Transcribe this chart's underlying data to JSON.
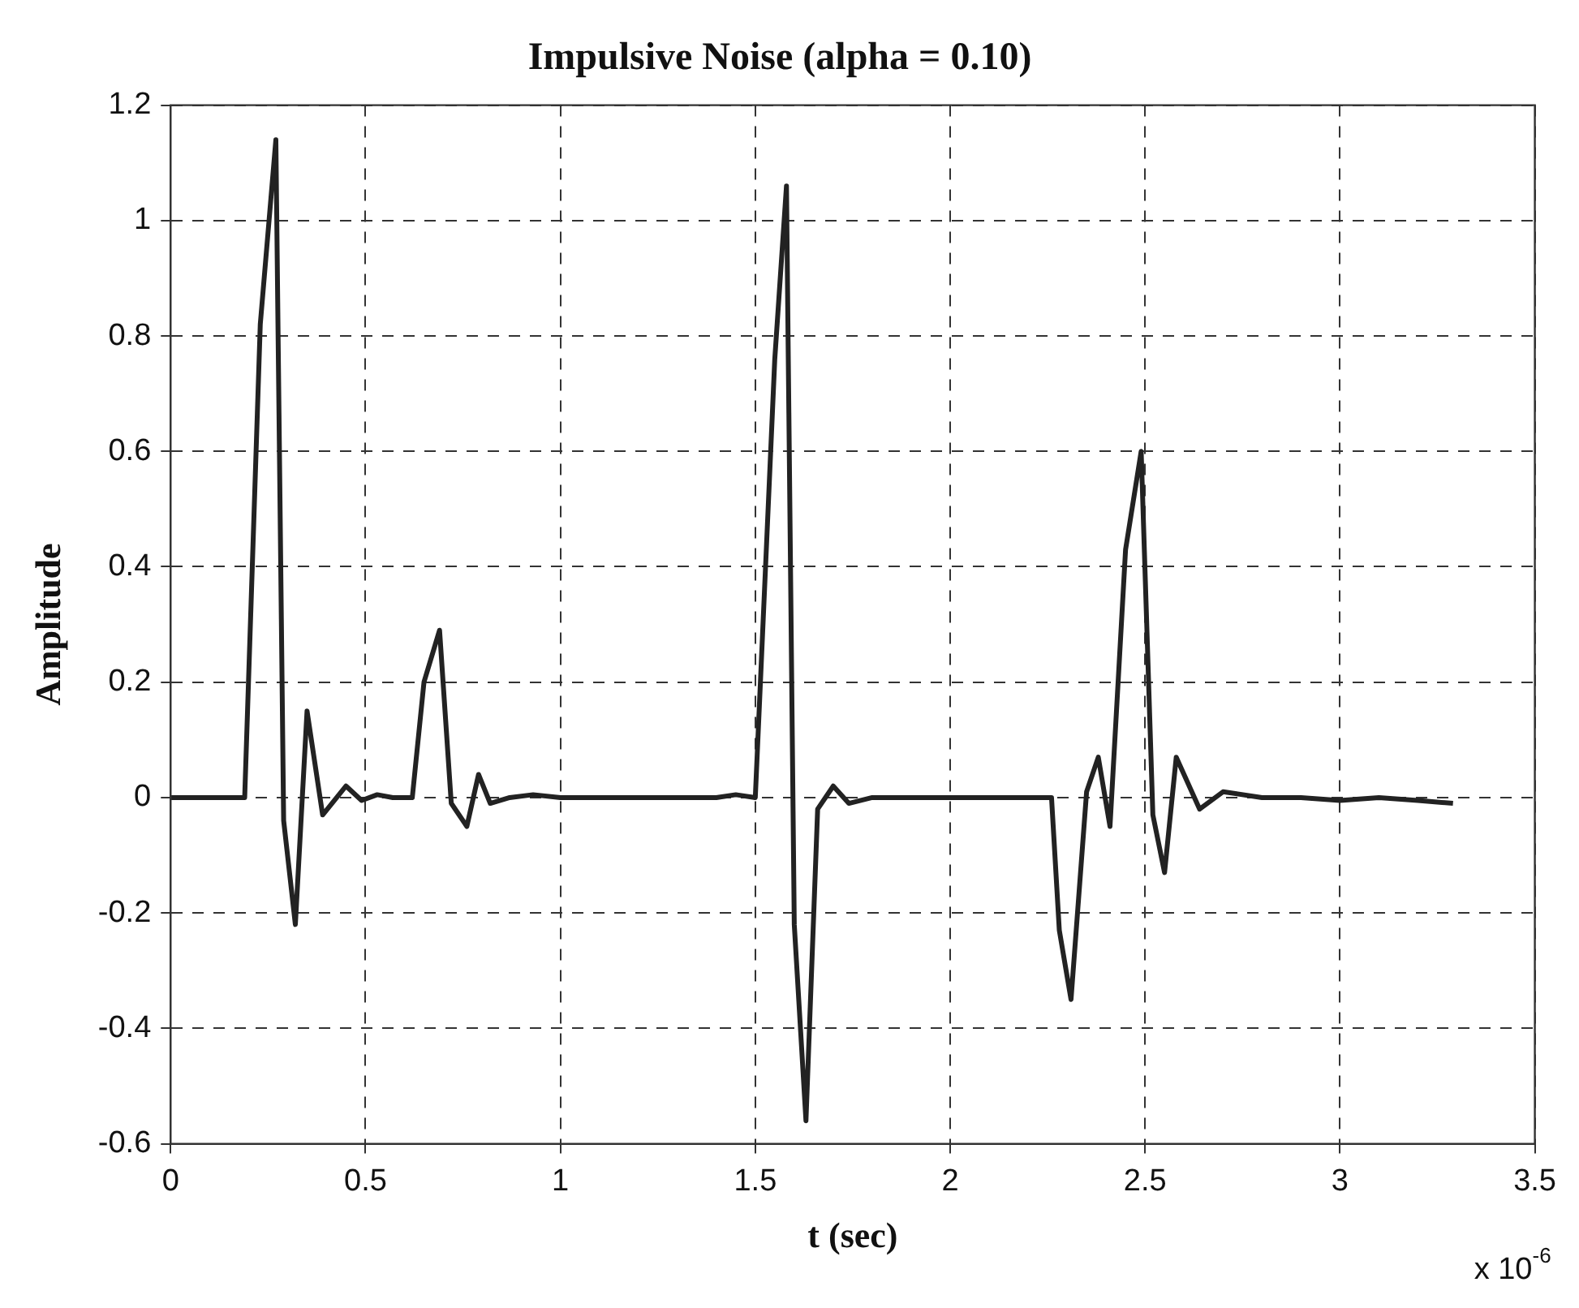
{
  "chart_data": {
    "type": "line",
    "title": "Impulsive Noise (alpha = 0.10)",
    "xlabel": "t (sec)",
    "ylabel": "Amplitude",
    "annotations": [
      "x 10$^{-6}$"
    ],
    "series": [
      {
        "color": "#222222",
        "x": [
          0,
          0.1,
          0.19,
          0.23,
          0.27,
          0.29,
          0.32,
          0.35,
          0.39,
          0.45,
          0.49,
          0.53,
          0.57,
          0.62,
          0.65,
          0.69,
          0.72,
          0.76,
          0.79,
          0.82,
          0.87,
          0.93,
          1.0,
          1.1,
          1.2,
          1.3,
          1.4,
          1.45,
          1.5,
          1.55,
          1.58,
          1.6,
          1.63,
          1.66,
          1.7,
          1.74,
          1.8,
          1.9,
          2.0,
          2.1,
          2.2,
          2.26,
          2.28,
          2.31,
          2.35,
          2.38,
          2.41,
          2.45,
          2.49,
          2.52,
          2.55,
          2.58,
          2.64,
          2.7,
          2.8,
          2.9,
          3.0,
          3.1,
          3.2,
          3.29
        ],
        "values": [
          0,
          0,
          0,
          0.82,
          1.14,
          -0.04,
          -0.22,
          0.15,
          -0.03,
          0.02,
          -0.005,
          0.005,
          0,
          0,
          0.2,
          0.29,
          -0.01,
          -0.05,
          0.04,
          -0.01,
          0,
          0.005,
          0,
          0,
          0,
          0,
          0,
          0.005,
          0,
          0.76,
          1.06,
          -0.22,
          -0.56,
          -0.02,
          0.02,
          -0.01,
          0,
          0,
          0,
          0,
          0,
          0,
          -0.23,
          -0.35,
          0.01,
          0.07,
          -0.05,
          0.43,
          0.6,
          -0.03,
          -0.13,
          0.07,
          -0.02,
          0.01,
          0,
          0,
          -0.005,
          0,
          -0.005,
          -0.01
        ]
      }
    ],
    "xlim": [
      0,
      3.5
    ],
    "xticks": [
      0,
      0.5,
      1,
      1.5,
      2,
      2.5,
      3,
      3.5
    ],
    "ylim": [
      -0.6,
      1.2
    ],
    "yticks": [
      -0.6,
      -0.4,
      -0.2,
      0,
      0.2,
      0.4,
      0.6,
      0.8,
      1,
      1.2
    ],
    "grid": true,
    "legend": false,
    "marker": "none",
    "line_style": "solid"
  }
}
